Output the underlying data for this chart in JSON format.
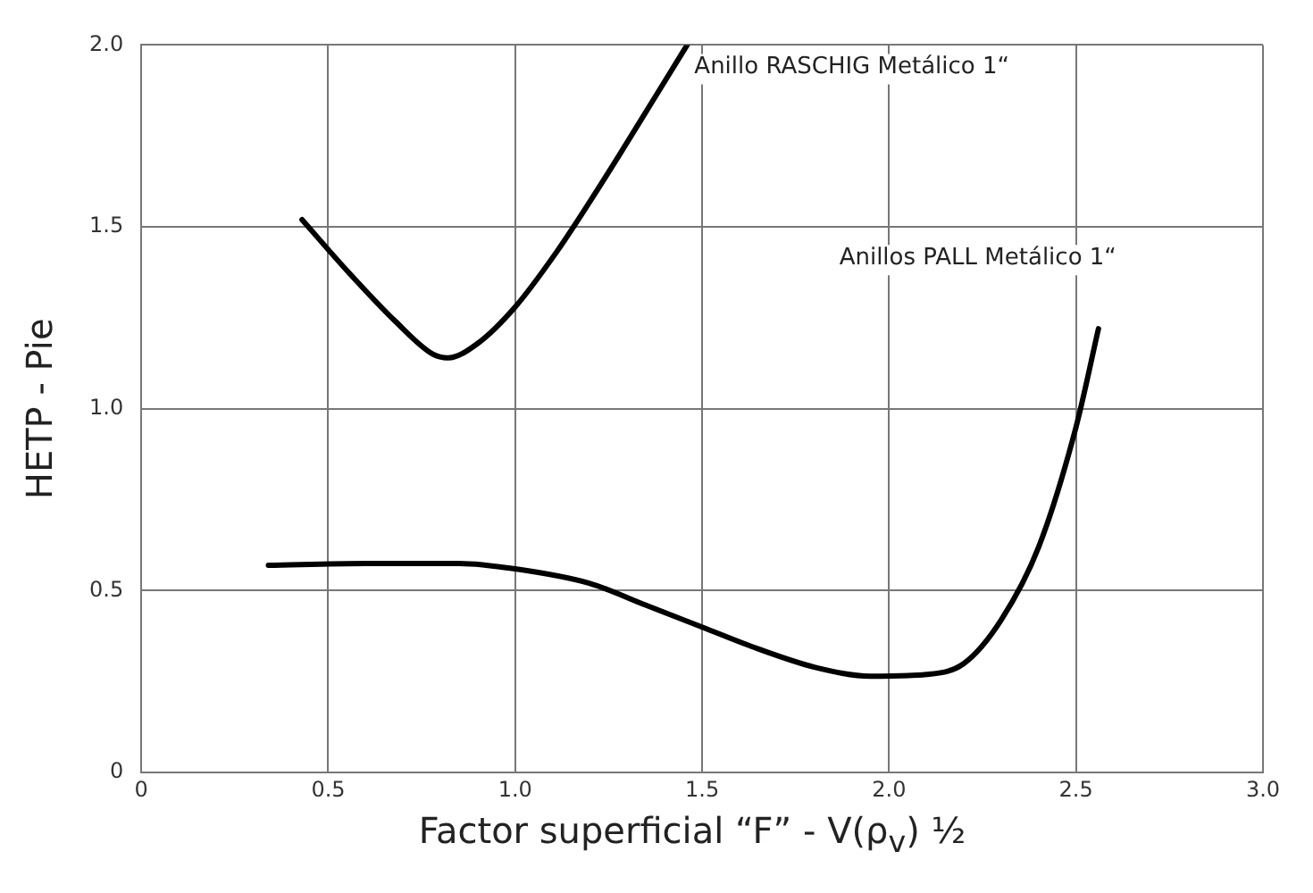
{
  "chart_data": {
    "type": "line",
    "xlabel": "Factor superficial “F” - V(ρ$_{v}$) ½",
    "ylabel": "HETP - Pie",
    "xlim": [
      0,
      3.0
    ],
    "xticks": [
      0,
      0.5,
      {
        "value": 1,
        "label": "1.0"
      },
      1.5,
      {
        "value": 2,
        "label": "2.0"
      },
      2.5,
      {
        "value": 3,
        "label": "3.0"
      }
    ],
    "ylim": [
      0,
      2.0
    ],
    "yticks": [
      0,
      0.5,
      {
        "value": 1,
        "label": "1.0"
      },
      1.5,
      {
        "value": 2,
        "label": "2.0"
      }
    ],
    "grid": true,
    "legend": false,
    "marker": "none",
    "line_style": "solid",
    "series": [
      {
        "name": "Anillo RASCHIG Metálico 1“",
        "color": "#000000",
        "x": [
          0.43,
          0.55,
          0.68,
          0.78,
          0.82,
          0.9,
          1.0,
          1.11,
          1.2,
          1.28,
          1.37,
          1.46
        ],
        "values": [
          1.52,
          1.38,
          1.24,
          1.15,
          1.14,
          1.18,
          1.28,
          1.43,
          1.57,
          1.7,
          1.85,
          2.0
        ]
      },
      {
        "name": "Anillos PALL Metálico 1“",
        "color": "#000000",
        "x": [
          0.34,
          0.6,
          0.85,
          1.0,
          1.2,
          1.35,
          1.5,
          1.65,
          1.8,
          1.95,
          2.1,
          2.2,
          2.3,
          2.4,
          2.5,
          2.56
        ],
        "values": [
          0.57,
          0.575,
          0.575,
          0.56,
          0.52,
          0.46,
          0.4,
          0.34,
          0.29,
          0.265,
          0.27,
          0.3,
          0.42,
          0.62,
          0.95,
          1.22
        ]
      }
    ]
  }
}
